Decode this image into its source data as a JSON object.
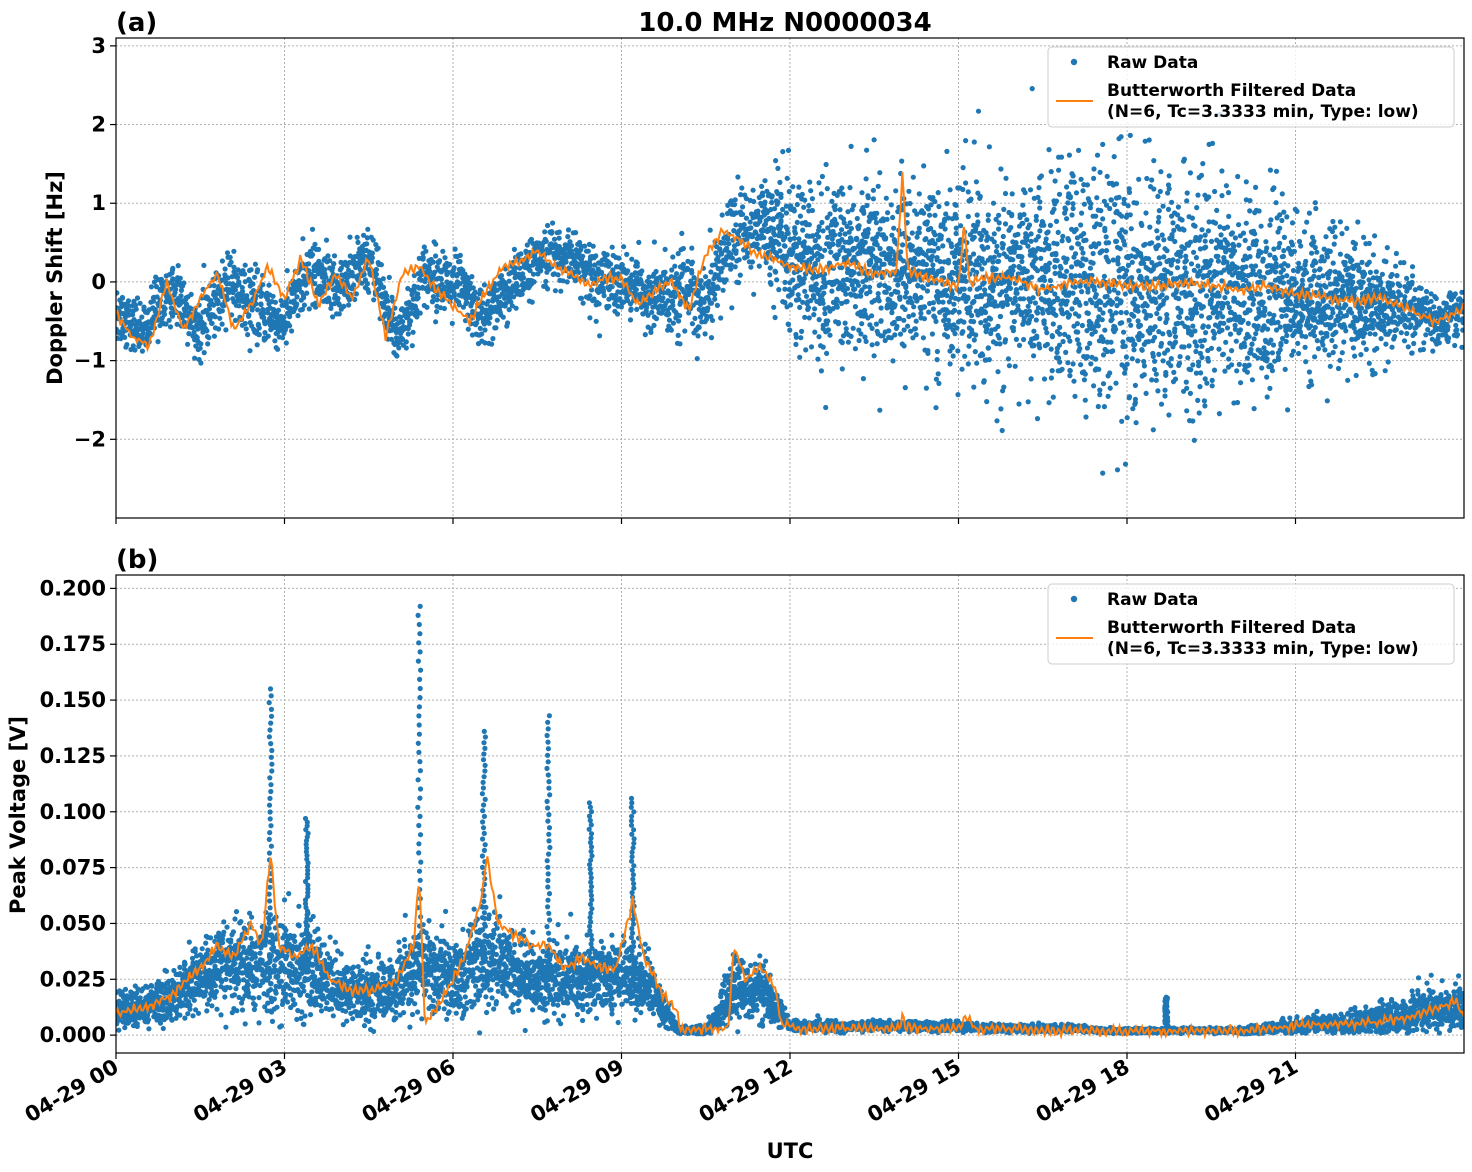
{
  "figure": {
    "title": "10.0 MHz N0000034",
    "xlabel": "UTC"
  },
  "colors": {
    "raw": "#1f77b4",
    "filtered": "#ff7f0e",
    "grid": "#b0b0b0",
    "axis": "#000000"
  },
  "legend": {
    "raw_label": "Raw Data",
    "filtered_line1": "Butterworth Filtered Data",
    "filtered_line2": "(N=6, Tc=3.3333 min, Type: low)",
    "placement": "top-right"
  },
  "chart_data": [
    {
      "type": "scatter",
      "panel_label": "(a)",
      "title": "10.0 MHz N0000034",
      "xlabel": "",
      "ylabel": "Doppler Shift [Hz]",
      "xlim": [
        0,
        24
      ],
      "ylim": [
        -3.0,
        3.1
      ],
      "xticks": [
        0,
        3,
        6,
        9,
        12,
        15,
        18,
        21
      ],
      "xtick_labels": [
        "04-29 00",
        "04-29 03",
        "04-29 06",
        "04-29 09",
        "04-29 12",
        "04-29 15",
        "04-29 18",
        "04-29 21"
      ],
      "yticks": [
        -2,
        -1,
        0,
        1,
        2,
        3
      ],
      "ytick_labels": [
        "−2",
        "−1",
        "0",
        "1",
        "2",
        "3"
      ],
      "grid": true,
      "legend": "top-right",
      "series": [
        {
          "name": "Raw Data",
          "style": "points",
          "x": [
            0.0,
            0.5,
            1.0,
            1.5,
            2.0,
            2.5,
            3.0,
            3.5,
            4.0,
            4.5,
            5.0,
            5.5,
            6.0,
            6.5,
            7.0,
            7.5,
            8.0,
            8.5,
            9.0,
            9.5,
            10.0,
            10.5,
            11.0,
            11.5,
            12.0,
            12.5,
            13.0,
            13.5,
            14.0,
            14.5,
            15.0,
            15.5,
            16.0,
            16.5,
            17.0,
            17.5,
            18.0,
            18.5,
            19.0,
            19.5,
            20.0,
            20.5,
            21.0,
            21.5,
            22.0,
            22.5,
            23.0,
            23.5,
            24.0
          ],
          "center": [
            -0.4,
            -0.6,
            -0.1,
            -0.6,
            0.0,
            -0.3,
            -0.5,
            0.2,
            -0.1,
            0.3,
            -0.7,
            0.1,
            0.0,
            -0.45,
            -0.1,
            0.3,
            0.35,
            0.05,
            0.0,
            -0.2,
            -0.1,
            -0.3,
            0.6,
            0.7,
            0.3,
            0.15,
            0.2,
            0.25,
            0.15,
            0.1,
            0.05,
            0.0,
            0.0,
            -0.05,
            0.0,
            -0.05,
            -0.05,
            -0.05,
            -0.1,
            -0.1,
            -0.15,
            -0.2,
            -0.2,
            -0.25,
            -0.25,
            -0.3,
            -0.35,
            -0.5,
            -0.4
          ],
          "spread": [
            0.35,
            0.35,
            0.35,
            0.35,
            0.35,
            0.35,
            0.35,
            0.35,
            0.35,
            0.35,
            0.35,
            0.35,
            0.35,
            0.35,
            0.35,
            0.35,
            0.35,
            0.35,
            0.35,
            0.35,
            0.5,
            0.5,
            0.5,
            0.5,
            0.9,
            0.95,
            1.0,
            1.0,
            1.0,
            1.0,
            1.1,
            1.1,
            1.2,
            1.3,
            1.35,
            1.4,
            1.4,
            1.4,
            1.3,
            1.25,
            1.2,
            1.0,
            0.9,
            0.8,
            0.7,
            0.55,
            0.45,
            0.3,
            0.3
          ]
        },
        {
          "name": "Butterworth Filtered Data\n(N=6, Tc=3.3333 min, Type: low)",
          "style": "line",
          "x": [
            0.0,
            0.3,
            0.6,
            0.9,
            1.2,
            1.5,
            1.8,
            2.1,
            2.4,
            2.7,
            3.0,
            3.3,
            3.6,
            3.9,
            4.2,
            4.5,
            4.8,
            5.1,
            5.4,
            5.7,
            6.0,
            6.3,
            6.6,
            6.9,
            7.2,
            7.5,
            7.8,
            8.1,
            8.4,
            8.7,
            9.0,
            9.3,
            9.6,
            9.9,
            10.2,
            10.5,
            10.8,
            11.1,
            11.4,
            11.7,
            12.0,
            12.5,
            13.0,
            13.5,
            13.9,
            14.0,
            14.1,
            14.5,
            15.0,
            15.1,
            15.2,
            15.5,
            16.0,
            16.5,
            17.0,
            17.5,
            18.0,
            18.5,
            19.0,
            19.5,
            20.0,
            20.5,
            21.0,
            21.5,
            22.0,
            22.5,
            23.0,
            23.5,
            24.0
          ],
          "y": [
            -0.4,
            -0.7,
            -0.8,
            0.0,
            -0.6,
            -0.2,
            0.1,
            -0.6,
            -0.3,
            0.2,
            -0.2,
            0.3,
            -0.3,
            0.1,
            -0.2,
            0.3,
            -0.7,
            0.1,
            0.2,
            -0.1,
            -0.3,
            -0.5,
            -0.1,
            0.2,
            0.25,
            0.4,
            0.2,
            0.1,
            -0.05,
            0.05,
            0.05,
            -0.3,
            -0.1,
            0.0,
            -0.35,
            0.35,
            0.65,
            0.55,
            0.35,
            0.3,
            0.2,
            0.15,
            0.25,
            0.1,
            0.15,
            1.38,
            0.15,
            0.05,
            -0.05,
            0.75,
            0.0,
            0.05,
            0.05,
            -0.1,
            0.0,
            0.0,
            -0.05,
            -0.05,
            0.0,
            -0.05,
            -0.1,
            -0.05,
            -0.15,
            -0.2,
            -0.25,
            -0.2,
            -0.35,
            -0.5,
            -0.35
          ]
        }
      ]
    },
    {
      "type": "scatter",
      "panel_label": "(b)",
      "title": "",
      "xlabel": "UTC",
      "ylabel": "Peak Voltage [V]",
      "xlim": [
        0,
        24
      ],
      "ylim": [
        -0.008,
        0.206
      ],
      "xticks": [
        0,
        3,
        6,
        9,
        12,
        15,
        18,
        21
      ],
      "xtick_labels": [
        "04-29 00",
        "04-29 03",
        "04-29 06",
        "04-29 09",
        "04-29 12",
        "04-29 15",
        "04-29 18",
        "04-29 21"
      ],
      "yticks": [
        0.0,
        0.025,
        0.05,
        0.075,
        0.1,
        0.125,
        0.15,
        0.175,
        0.2
      ],
      "ytick_labels": [
        "0.000",
        "0.025",
        "0.050",
        "0.075",
        "0.100",
        "0.125",
        "0.150",
        "0.175",
        "0.200"
      ],
      "grid": true,
      "legend": "top-right",
      "series": [
        {
          "name": "Raw Data",
          "style": "points",
          "x": [
            0.0,
            0.5,
            1.0,
            1.5,
            2.0,
            2.5,
            3.0,
            3.5,
            4.0,
            4.5,
            5.0,
            5.5,
            6.0,
            6.5,
            7.0,
            7.5,
            8.0,
            8.5,
            9.0,
            9.5,
            10.0,
            10.5,
            11.0,
            11.5,
            12.0,
            12.5,
            13.0,
            13.5,
            14.0,
            14.5,
            15.0,
            15.5,
            16.0,
            16.5,
            17.0,
            17.5,
            18.0,
            18.5,
            19.0,
            19.5,
            20.0,
            20.5,
            21.0,
            21.5,
            22.0,
            22.5,
            23.0,
            23.5,
            24.0
          ],
          "center": [
            0.012,
            0.012,
            0.017,
            0.025,
            0.03,
            0.032,
            0.033,
            0.03,
            0.02,
            0.02,
            0.022,
            0.03,
            0.025,
            0.035,
            0.03,
            0.025,
            0.025,
            0.025,
            0.028,
            0.022,
            0.002,
            0.002,
            0.02,
            0.02,
            0.004,
            0.004,
            0.004,
            0.004,
            0.004,
            0.004,
            0.004,
            0.003,
            0.003,
            0.003,
            0.003,
            0.002,
            0.002,
            0.002,
            0.002,
            0.002,
            0.002,
            0.003,
            0.004,
            0.005,
            0.005,
            0.007,
            0.009,
            0.012,
            0.012
          ],
          "spread": [
            0.007,
            0.008,
            0.01,
            0.013,
            0.016,
            0.02,
            0.02,
            0.018,
            0.012,
            0.012,
            0.013,
            0.016,
            0.016,
            0.018,
            0.016,
            0.014,
            0.014,
            0.014,
            0.014,
            0.012,
            0.002,
            0.002,
            0.012,
            0.012,
            0.002,
            0.002,
            0.002,
            0.002,
            0.002,
            0.002,
            0.002,
            0.0015,
            0.0015,
            0.0015,
            0.0015,
            0.001,
            0.001,
            0.001,
            0.001,
            0.001,
            0.0015,
            0.002,
            0.003,
            0.004,
            0.005,
            0.006,
            0.007,
            0.008,
            0.008
          ],
          "spikes": [
            {
              "x": 2.75,
              "ymax": 0.155
            },
            {
              "x": 5.4,
              "ymax": 0.192
            },
            {
              "x": 6.55,
              "ymax": 0.136
            },
            {
              "x": 7.7,
              "ymax": 0.143
            },
            {
              "x": 8.45,
              "ymax": 0.104
            },
            {
              "x": 9.2,
              "ymax": 0.106
            },
            {
              "x": 3.4,
              "ymax": 0.097
            },
            {
              "x": 18.7,
              "ymax": 0.017
            }
          ]
        },
        {
          "name": "Butterworth Filtered Data\n(N=6, Tc=3.3333 min, Type: low)",
          "style": "line",
          "x": [
            0.0,
            0.5,
            1.0,
            1.5,
            1.8,
            2.1,
            2.4,
            2.6,
            2.75,
            2.9,
            3.2,
            3.5,
            3.8,
            4.2,
            4.6,
            5.0,
            5.3,
            5.4,
            5.5,
            5.8,
            6.2,
            6.5,
            6.6,
            6.8,
            7.1,
            7.4,
            7.7,
            8.0,
            8.3,
            8.6,
            8.9,
            9.2,
            9.4,
            9.7,
            10.0,
            10.05,
            10.5,
            10.9,
            11.0,
            11.2,
            11.5,
            11.75,
            11.85,
            12.2,
            12.6,
            13.0,
            13.5,
            13.95,
            14.0,
            14.05,
            14.5,
            15.0,
            15.15,
            15.3,
            16.0,
            16.5,
            17.0,
            17.5,
            18.0,
            18.5,
            19.0,
            19.5,
            20.0,
            20.5,
            21.0,
            21.5,
            22.0,
            22.5,
            23.0,
            23.5,
            23.85,
            24.0
          ],
          "y": [
            0.01,
            0.012,
            0.018,
            0.03,
            0.04,
            0.035,
            0.05,
            0.04,
            0.082,
            0.04,
            0.035,
            0.04,
            0.025,
            0.02,
            0.02,
            0.025,
            0.04,
            0.072,
            0.005,
            0.015,
            0.035,
            0.06,
            0.081,
            0.05,
            0.045,
            0.04,
            0.04,
            0.03,
            0.035,
            0.03,
            0.03,
            0.06,
            0.035,
            0.02,
            0.01,
            0.002,
            0.003,
            0.003,
            0.04,
            0.025,
            0.03,
            0.02,
            0.005,
            0.003,
            0.003,
            0.003,
            0.003,
            0.003,
            0.009,
            0.004,
            0.003,
            0.003,
            0.008,
            0.003,
            0.003,
            0.002,
            0.002,
            0.002,
            0.002,
            0.002,
            0.002,
            0.002,
            0.002,
            0.003,
            0.004,
            0.005,
            0.005,
            0.006,
            0.008,
            0.012,
            0.015,
            0.008
          ]
        }
      ]
    }
  ]
}
